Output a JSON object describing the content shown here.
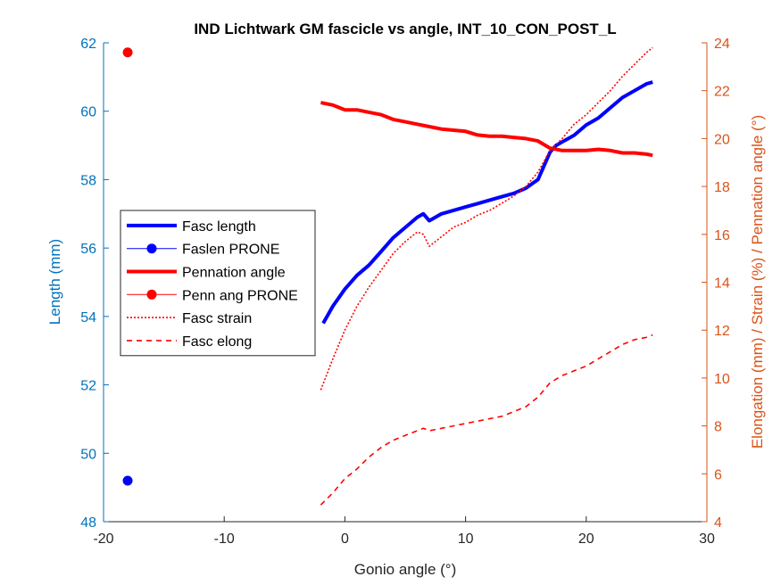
{
  "chart_data": {
    "type": "line",
    "title": "IND Lichtwark GM fascicle vs angle, INT_10_CON_POST_L",
    "xlabel": "Gonio angle (°)",
    "ylabel_left": "Length (mm)",
    "ylabel_right": "Elongation (mm) / Strain (%) / Pennation angle (°)",
    "xlim": [
      -20,
      30
    ],
    "ylim_left": [
      48,
      62
    ],
    "ylim_right": [
      4,
      24
    ],
    "xticks": [
      -20,
      -10,
      0,
      10,
      20,
      30
    ],
    "yticks_left": [
      48,
      50,
      52,
      54,
      56,
      58,
      60,
      62
    ],
    "yticks_right": [
      4,
      6,
      8,
      10,
      12,
      14,
      16,
      18,
      20,
      22,
      24
    ],
    "grid": false,
    "legend_position": "middle-left",
    "colors": {
      "left_axis": "#0072BD",
      "right_axis": "#D95319",
      "blue": "#0000FF",
      "red": "#FF0000"
    },
    "series": [
      {
        "name": "Fasc length",
        "axis": "left",
        "style": "solid-thick",
        "color": "#0000FF",
        "x": [
          -1.8,
          -1.0,
          0.0,
          1.0,
          2.0,
          3.0,
          4.0,
          5.0,
          6.0,
          6.5,
          7.0,
          8.0,
          9.0,
          10.0,
          11.0,
          12.0,
          13.0,
          14.0,
          15.0,
          16.0,
          16.5,
          17.0,
          17.5,
          18.0,
          19.0,
          20.0,
          21.0,
          22.0,
          23.0,
          24.0,
          25.0,
          25.5
        ],
        "y": [
          53.8,
          54.3,
          54.8,
          55.2,
          55.5,
          55.9,
          56.3,
          56.6,
          56.9,
          57.0,
          56.8,
          57.0,
          57.1,
          57.2,
          57.3,
          57.4,
          57.5,
          57.6,
          57.75,
          58.0,
          58.4,
          58.8,
          59.0,
          59.1,
          59.3,
          59.6,
          59.8,
          60.1,
          60.4,
          60.6,
          60.8,
          60.85
        ]
      },
      {
        "name": "Faslen PRONE",
        "axis": "left",
        "style": "marker",
        "color": "#0000FF",
        "x": [
          -18
        ],
        "y": [
          49.2
        ]
      },
      {
        "name": "Pennation angle",
        "axis": "right",
        "style": "solid-thick",
        "color": "#FF0000",
        "x": [
          -2.0,
          -1.0,
          0.0,
          1.0,
          2.0,
          3.0,
          4.0,
          5.0,
          6.0,
          7.0,
          8.0,
          9.0,
          10.0,
          11.0,
          12.0,
          13.0,
          14.0,
          15.0,
          16.0,
          17.0,
          18.0,
          19.0,
          20.0,
          21.0,
          22.0,
          23.0,
          24.0,
          25.0,
          25.5
        ],
        "y": [
          21.5,
          21.4,
          21.2,
          21.2,
          21.1,
          21.0,
          20.8,
          20.7,
          20.6,
          20.5,
          20.4,
          20.35,
          20.3,
          20.15,
          20.1,
          20.1,
          20.05,
          20.0,
          19.9,
          19.6,
          19.5,
          19.5,
          19.5,
          19.55,
          19.5,
          19.4,
          19.4,
          19.35,
          19.3
        ]
      },
      {
        "name": "Penn ang PRONE",
        "axis": "right",
        "style": "marker",
        "color": "#FF0000",
        "x": [
          -18
        ],
        "y": [
          23.6
        ]
      },
      {
        "name": "Fasc strain",
        "axis": "right",
        "style": "dotted",
        "color": "#FF0000",
        "x": [
          -2.0,
          -1.0,
          0.0,
          1.0,
          2.0,
          3.0,
          4.0,
          5.0,
          6.0,
          6.5,
          7.0,
          8.0,
          9.0,
          10.0,
          11.0,
          12.0,
          13.0,
          14.0,
          15.0,
          16.0,
          17.0,
          18.0,
          19.0,
          20.0,
          21.0,
          22.0,
          23.0,
          24.0,
          25.0,
          25.5
        ],
        "y": [
          9.5,
          10.8,
          12.0,
          13.0,
          13.8,
          14.5,
          15.2,
          15.7,
          16.1,
          16.0,
          15.5,
          15.9,
          16.3,
          16.5,
          16.8,
          17.0,
          17.3,
          17.6,
          18.0,
          18.6,
          19.5,
          20.0,
          20.6,
          21.0,
          21.5,
          22.0,
          22.6,
          23.1,
          23.6,
          23.8
        ]
      },
      {
        "name": "Fasc elong",
        "axis": "right",
        "style": "dashed",
        "color": "#FF0000",
        "x": [
          -2.0,
          -1.0,
          0.0,
          1.0,
          2.0,
          3.0,
          4.0,
          5.0,
          6.0,
          6.5,
          7.0,
          8.0,
          9.0,
          10.0,
          11.0,
          12.0,
          13.0,
          14.0,
          15.0,
          16.0,
          17.0,
          18.0,
          19.0,
          20.0,
          21.0,
          22.0,
          23.0,
          24.0,
          25.0,
          25.5
        ],
        "y": [
          4.7,
          5.2,
          5.8,
          6.2,
          6.7,
          7.1,
          7.4,
          7.6,
          7.8,
          7.9,
          7.8,
          7.9,
          8.0,
          8.1,
          8.2,
          8.3,
          8.4,
          8.6,
          8.8,
          9.2,
          9.8,
          10.1,
          10.3,
          10.5,
          10.8,
          11.1,
          11.4,
          11.6,
          11.7,
          11.8
        ]
      }
    ]
  }
}
